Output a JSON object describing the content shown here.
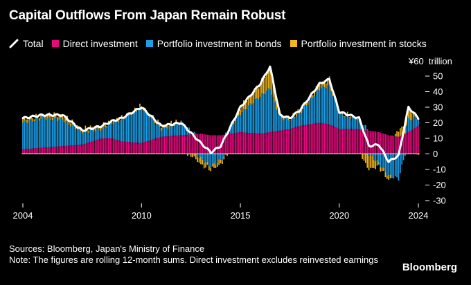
{
  "title": "Capital Outflows From Japan Remain Robust",
  "legend": [
    {
      "label": "Total",
      "color": "#ffffff",
      "kind": "line"
    },
    {
      "label": "Direct investment",
      "color": "#e6087f",
      "kind": "bar"
    },
    {
      "label": "Portfolio investment in bonds",
      "color": "#1a9ee6",
      "kind": "bar"
    },
    {
      "label": "Portfolio investment in stocks",
      "color": "#f2b81c",
      "kind": "bar"
    }
  ],
  "footer": {
    "sources": "Sources: Bloomberg, Japan's Ministry of Finance",
    "note": "Note: The figures are rolling 12-month sums. Direct investment excludes reinvested earnings"
  },
  "brand": "Bloomberg",
  "chart_data": {
    "type": "bar",
    "stacked": true,
    "title": "Capital Outflows From Japan Remain Robust",
    "y_unit_label": "¥60  trillion",
    "ylim": [
      -30,
      60
    ],
    "yticks": [
      "50",
      "40",
      "30",
      "20",
      "10",
      "0",
      "-10",
      "-20",
      "-30"
    ],
    "xlim": [
      2004,
      2024
    ],
    "xticks": [
      "2004",
      "2010",
      "2015",
      "2020",
      "2024"
    ],
    "grid": false,
    "legend_position": "top",
    "x": [
      2004.0,
      2005.0,
      2006.0,
      2007.0,
      2008.0,
      2008.5,
      2009.0,
      2010.0,
      2011.0,
      2012.0,
      2013.0,
      2013.5,
      2014.0,
      2015.0,
      2016.0,
      2016.5,
      2017.0,
      2017.5,
      2018.0,
      2019.0,
      2019.5,
      2020.0,
      2021.0,
      2021.5,
      2022.0,
      2022.5,
      2023.0,
      2023.5,
      2024.0
    ],
    "series": [
      {
        "name": "Direct investment",
        "values": [
          3,
          4,
          5,
          6,
          10,
          10,
          8,
          7,
          11,
          12,
          13,
          12,
          12,
          14,
          13,
          14,
          15,
          16,
          18,
          20,
          19,
          16,
          16,
          15,
          14,
          12,
          11,
          14,
          18
        ]
      },
      {
        "name": "Portfolio investment in bonds",
        "values": [
          17,
          19,
          17,
          8,
          6,
          10,
          14,
          23,
          5,
          8,
          -3,
          -8,
          -4,
          12,
          24,
          28,
          8,
          6,
          8,
          22,
          25,
          10,
          6,
          0,
          -6,
          -14,
          -16,
          8,
          6
        ]
      },
      {
        "name": "Portfolio investment in stocks",
        "values": [
          2,
          2,
          3,
          2,
          2,
          1,
          1,
          1,
          2,
          1,
          -4,
          -2,
          -3,
          4,
          8,
          14,
          2,
          1,
          2,
          3,
          4,
          1,
          1,
          -10,
          -2,
          -3,
          4,
          8,
          -1
        ]
      },
      {
        "name": "Total",
        "values": [
          23,
          25,
          25,
          15,
          18,
          21,
          23,
          30,
          18,
          20,
          7,
          1,
          5,
          30,
          45,
          56,
          25,
          23,
          28,
          45,
          48,
          27,
          23,
          5,
          6,
          -5,
          -1,
          30,
          23
        ]
      }
    ]
  }
}
